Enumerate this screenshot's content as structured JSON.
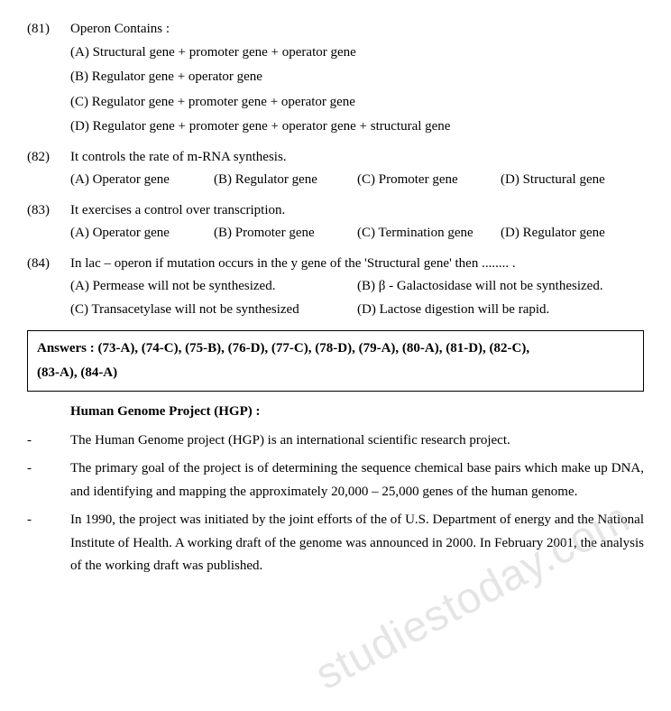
{
  "q81": {
    "num": "(81)",
    "text": "Operon Contains :",
    "optA": "(A) Structural gene  + promoter gene + operator gene",
    "optB": "(B) Regulator gene + operator gene",
    "optC": "(C) Regulator gene + promoter gene +   operator gene",
    "optD": "(D) Regulator gene + promoter gene + operator gene + structural gene"
  },
  "q82": {
    "num": "(82)",
    "text": "It controls the rate of m-RNA synthesis.",
    "optA": "(A) Operator gene",
    "optB": "(B)  Regulator gene",
    "optC": "(C)  Promoter gene",
    "optD": "(D)  Structural gene"
  },
  "q83": {
    "num": "(83)",
    "text": "It exercises a control over transcription.",
    "optA": "(A) Operator gene",
    "optB": "(B)  Promoter gene",
    "optC": "(C)  Termination gene",
    "optD": "(D) Regulator gene"
  },
  "q84": {
    "num": "(84)",
    "text": "In lac – operon if mutation occurs in the y gene of the 'Structural gene' then ........ .",
    "optA": "(A) Permease will not be synthesized.",
    "optB": "(B)  β - Galactosidase will not be synthesized.",
    "optC": "(C) Transacetylase will not be synthesized",
    "optD": "(D)  Lactose digestion will be rapid."
  },
  "answers": {
    "line1": "Answers  :  (73-A),  (74-C),  (75-B),  (76-D),  (77-C),  (78-D),  (79-A),  (80-A),  (81-D),  (82-C),",
    "line2": "(83-A),  (84-A)"
  },
  "hgp": {
    "heading": "Human Genome Project (HGP) :",
    "b1": "The Human Genome project (HGP) is an international scientific research project.",
    "b2": "The primary goal of the project is of determining the sequence chemical base pairs which make up DNA, and identifying and mapping the approximately 20,000 – 25,000 genes of the human genome.",
    "b3": "In 1990, the project was initiated by the joint efforts of the of U.S. Department of energy and the National Institute of Health. A working draft of the genome was announced in 2000. In February 2001, the analysis of the working draft was published."
  },
  "watermark": "studiestoday.com"
}
